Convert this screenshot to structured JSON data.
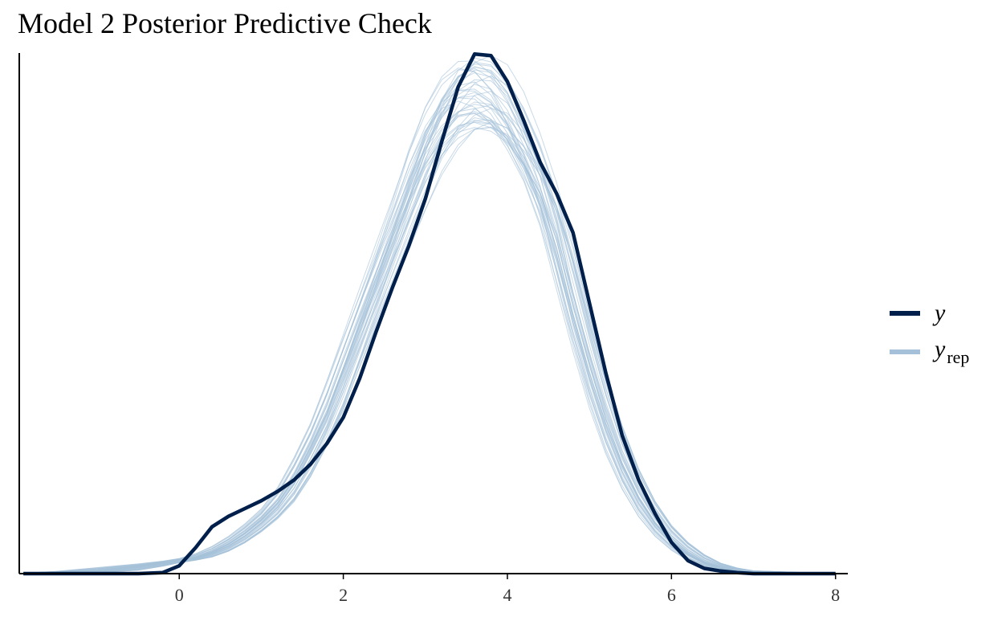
{
  "chart_data": {
    "type": "line",
    "title": "Model 2 Posterior Predictive Check",
    "xlabel": "",
    "ylabel": "",
    "xlim": [
      -1.95,
      8.15
    ],
    "ylim": [
      0,
      1.0
    ],
    "x_ticks": [
      "0",
      "2",
      "4",
      "6",
      "8"
    ],
    "y_ticks": [],
    "grid": false,
    "legend_position": "right",
    "x": [
      -1.9,
      -1.5,
      -1.0,
      -0.5,
      -0.2,
      0.0,
      0.2,
      0.4,
      0.6,
      0.8,
      1.0,
      1.2,
      1.4,
      1.6,
      1.8,
      2.0,
      2.2,
      2.4,
      2.6,
      2.8,
      3.0,
      3.2,
      3.4,
      3.6,
      3.8,
      4.0,
      4.2,
      4.4,
      4.6,
      4.8,
      5.0,
      5.2,
      5.4,
      5.6,
      5.8,
      6.0,
      6.2,
      6.4,
      6.6,
      6.8,
      7.0,
      7.5,
      8.0
    ],
    "series": [
      {
        "name": "y",
        "role": "observed",
        "color": "#011f4b",
        "values": [
          0.0,
          0.0,
          0.0,
          0.0,
          0.002,
          0.015,
          0.05,
          0.09,
          0.11,
          0.125,
          0.14,
          0.158,
          0.18,
          0.21,
          0.25,
          0.3,
          0.375,
          0.465,
          0.55,
          0.63,
          0.72,
          0.83,
          0.935,
          0.998,
          0.995,
          0.945,
          0.87,
          0.79,
          0.73,
          0.655,
          0.52,
          0.385,
          0.265,
          0.18,
          0.115,
          0.06,
          0.025,
          0.01,
          0.005,
          0.002,
          0.0,
          0.0,
          0.0
        ]
      },
      {
        "name": "y_rep",
        "role": "replicated",
        "color": "#a5c1d9",
        "values": [
          0.0,
          0.001,
          0.005,
          0.013,
          0.02,
          0.025,
          0.03,
          0.04,
          0.055,
          0.075,
          0.1,
          0.13,
          0.175,
          0.235,
          0.3,
          0.385,
          0.47,
          0.555,
          0.64,
          0.725,
          0.81,
          0.87,
          0.91,
          0.925,
          0.915,
          0.88,
          0.82,
          0.75,
          0.65,
          0.52,
          0.405,
          0.3,
          0.215,
          0.15,
          0.1,
          0.065,
          0.04,
          0.022,
          0.012,
          0.006,
          0.003,
          0.001,
          0.0
        ]
      }
    ],
    "n_replicated_draws": 40
  },
  "legend": {
    "y_label": "y",
    "yrep_main": "y",
    "yrep_sub": "rep"
  }
}
